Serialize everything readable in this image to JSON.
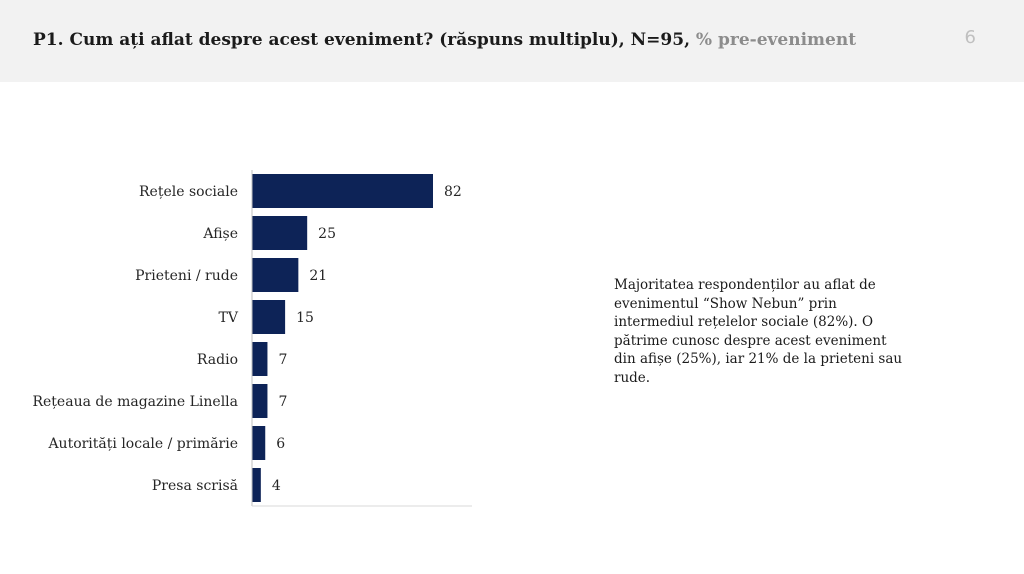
{
  "header": {
    "title_main": "P1. Cum ați aflat despre acest eveniment? (răspuns multiplu), N=95, ",
    "title_muted": "% pre-eveniment",
    "page_number": "6"
  },
  "chart_data": {
    "type": "bar",
    "orientation": "horizontal",
    "categories": [
      "Rețele sociale",
      "Afișe",
      "Prieteni / rude",
      "TV",
      "Radio",
      "Rețeaua de magazine Linella",
      "Autorități locale / primărie",
      "Presa scrisă"
    ],
    "values": [
      82,
      25,
      21,
      15,
      7,
      7,
      6,
      4
    ],
    "xlim": [
      0,
      100
    ],
    "grid": false,
    "legend": "none",
    "bar_color": "#0d2357"
  },
  "note": {
    "text": "Majoritatea respondenților au aflat de evenimentul “Show Nebun” prin intermediul rețelelor sociale (82%). O pătrime cunosc despre acest eveniment din afișe (25%), iar 21% de la prieteni sau rude."
  }
}
